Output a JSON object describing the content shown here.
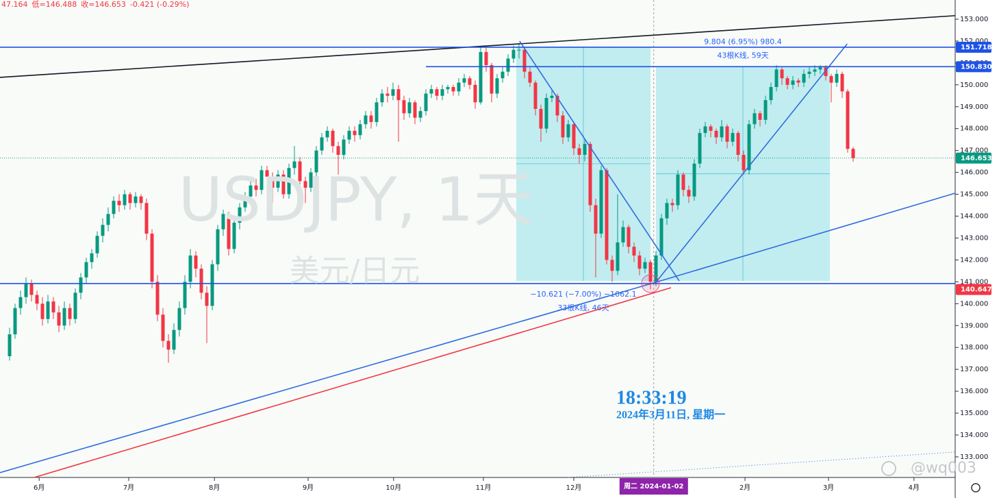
{
  "chart_data": {
    "type": "candlestick",
    "title": "USDJPY, 1天",
    "subtitle": "美元/日元",
    "header": [
      "47.164",
      "低=146.488",
      "收=146.653",
      "-0.421 (-0.29%)"
    ],
    "up_color": "#089981",
    "down_color": "#f23645",
    "xlim": [
      -1.75,
      172.625
    ],
    "xticks": [
      {
        "value": 5.4,
        "label": "6月"
      },
      {
        "value": 21.75,
        "label": "7月"
      },
      {
        "value": 37.4,
        "label": "8月"
      },
      {
        "value": 54.5,
        "label": "9月"
      },
      {
        "value": 70.1,
        "label": "10月"
      },
      {
        "value": 86.5,
        "label": "11月"
      },
      {
        "value": 103,
        "label": "12月"
      },
      {
        "value": 134.25,
        "label": "2月"
      },
      {
        "value": 149.5,
        "label": "3月"
      },
      {
        "value": 165.1,
        "label": "4月"
      }
    ],
    "crosshair": {
      "x": 117.6,
      "label": "周二 2024-01-02"
    },
    "ylim": [
      132.06,
      153.876
    ],
    "yticks": [
      {
        "value": 133,
        "label": "133.000"
      },
      {
        "value": 134,
        "label": "134.000"
      },
      {
        "value": 135,
        "label": "135.000"
      },
      {
        "value": 136,
        "label": "136.000"
      },
      {
        "value": 137,
        "label": "137.000"
      },
      {
        "value": 138,
        "label": "138.000"
      },
      {
        "value": 139,
        "label": "139.000"
      },
      {
        "value": 140,
        "label": "140.000"
      },
      {
        "value": 141,
        "label": "141.000"
      },
      {
        "value": 142,
        "label": "142.000"
      },
      {
        "value": 143,
        "label": "143.000"
      },
      {
        "value": 144,
        "label": "144.000"
      },
      {
        "value": 145,
        "label": "145.000"
      },
      {
        "value": 146,
        "label": "146.000"
      },
      {
        "value": 147,
        "label": "147.000"
      },
      {
        "value": 148,
        "label": "148.000"
      },
      {
        "value": 149,
        "label": "149.000"
      },
      {
        "value": 150,
        "label": "150.000"
      },
      {
        "value": 151,
        "label": "151.000"
      },
      {
        "value": 152,
        "label": "152.000"
      },
      {
        "value": 153,
        "label": "153.000"
      }
    ],
    "ohlc": [
      [
        137.6,
        138.9,
        137.4,
        138.6
      ],
      [
        138.6,
        140.0,
        138.4,
        139.8
      ],
      [
        139.8,
        140.6,
        139.5,
        140.3
      ],
      [
        140.3,
        141.2,
        140.0,
        140.9
      ],
      [
        140.9,
        141.1,
        140.1,
        140.4
      ],
      [
        140.4,
        140.6,
        139.7,
        140.0
      ],
      [
        140.0,
        140.3,
        139.0,
        139.3
      ],
      [
        139.3,
        140.4,
        139.1,
        140.1
      ],
      [
        140.1,
        140.3,
        139.3,
        139.6
      ],
      [
        139.6,
        139.9,
        138.7,
        139.0
      ],
      [
        139.0,
        140.1,
        138.8,
        139.8
      ],
      [
        139.8,
        140.0,
        139.0,
        139.3
      ],
      [
        139.3,
        140.7,
        139.1,
        140.5
      ],
      [
        140.5,
        141.4,
        140.2,
        141.2
      ],
      [
        141.2,
        142.1,
        140.9,
        141.9
      ],
      [
        141.9,
        142.5,
        141.6,
        142.3
      ],
      [
        142.3,
        143.3,
        142.1,
        143.1
      ],
      [
        143.1,
        143.9,
        142.8,
        143.6
      ],
      [
        143.6,
        144.4,
        143.3,
        144.1
      ],
      [
        144.1,
        144.9,
        143.9,
        144.7
      ],
      [
        144.7,
        145.0,
        144.2,
        144.5
      ],
      [
        144.5,
        145.2,
        144.3,
        145.0
      ],
      [
        145.0,
        145.1,
        144.3,
        144.6
      ],
      [
        144.6,
        145.1,
        144.4,
        144.9
      ],
      [
        144.9,
        145.0,
        144.3,
        144.6
      ],
      [
        144.6,
        144.8,
        142.9,
        143.2
      ],
      [
        143.2,
        143.4,
        140.7,
        141.0
      ],
      [
        141.0,
        141.3,
        139.2,
        139.5
      ],
      [
        139.5,
        139.8,
        138.0,
        138.3
      ],
      [
        138.3,
        138.6,
        137.3,
        137.9
      ],
      [
        137.9,
        139.1,
        137.7,
        138.8
      ],
      [
        138.8,
        140.1,
        138.5,
        139.8
      ],
      [
        139.8,
        141.3,
        139.5,
        141.0
      ],
      [
        141.0,
        142.5,
        140.7,
        142.2
      ],
      [
        142.2,
        142.4,
        141.2,
        141.6
      ],
      [
        141.6,
        141.8,
        140.2,
        140.5
      ],
      [
        140.5,
        140.8,
        138.2,
        139.9
      ],
      [
        139.9,
        142.0,
        139.7,
        141.8
      ],
      [
        141.8,
        143.6,
        141.5,
        143.4
      ],
      [
        143.4,
        144.3,
        143.1,
        144.1
      ],
      [
        144.1,
        144.2,
        142.2,
        142.5
      ],
      [
        142.5,
        143.9,
        142.3,
        143.7
      ],
      [
        143.7,
        144.6,
        143.4,
        144.4
      ],
      [
        144.4,
        145.1,
        144.2,
        144.9
      ],
      [
        144.9,
        145.6,
        144.6,
        145.4
      ],
      [
        145.4,
        145.7,
        144.9,
        145.2
      ],
      [
        145.2,
        146.3,
        145.0,
        146.1
      ],
      [
        146.1,
        146.3,
        145.5,
        145.8
      ],
      [
        145.8,
        146.0,
        144.6,
        145.3
      ],
      [
        145.3,
        146.1,
        145.1,
        145.9
      ],
      [
        145.9,
        146.1,
        144.8,
        145.0
      ],
      [
        145.0,
        146.4,
        144.8,
        146.2
      ],
      [
        146.2,
        147.2,
        145.9,
        146.5
      ],
      [
        146.5,
        146.7,
        145.3,
        145.6
      ],
      [
        145.6,
        145.8,
        144.6,
        145.3
      ],
      [
        145.3,
        146.2,
        145.1,
        146.0
      ],
      [
        146.0,
        147.2,
        145.8,
        147.0
      ],
      [
        147.0,
        147.8,
        146.8,
        147.6
      ],
      [
        147.6,
        148.1,
        147.4,
        147.9
      ],
      [
        147.9,
        148.0,
        146.9,
        147.2
      ],
      [
        147.2,
        147.4,
        145.9,
        146.8
      ],
      [
        146.8,
        147.7,
        146.6,
        147.5
      ],
      [
        147.5,
        148.1,
        147.3,
        147.9
      ],
      [
        147.9,
        148.1,
        147.4,
        147.7
      ],
      [
        147.7,
        148.4,
        147.5,
        148.2
      ],
      [
        148.2,
        148.8,
        148.0,
        148.6
      ],
      [
        148.6,
        148.8,
        148.0,
        148.3
      ],
      [
        148.3,
        149.4,
        148.1,
        149.2
      ],
      [
        149.2,
        149.8,
        149.0,
        149.6
      ],
      [
        149.6,
        149.9,
        149.2,
        149.5
      ],
      [
        149.5,
        150.1,
        149.3,
        149.8
      ],
      [
        149.8,
        150.0,
        147.4,
        149.3
      ],
      [
        149.3,
        149.5,
        148.4,
        148.7
      ],
      [
        148.7,
        149.4,
        148.5,
        149.2
      ],
      [
        149.2,
        149.3,
        148.2,
        148.5
      ],
      [
        148.5,
        149.0,
        148.3,
        148.8
      ],
      [
        148.8,
        149.8,
        148.6,
        149.6
      ],
      [
        149.6,
        150.0,
        149.4,
        149.8
      ],
      [
        149.8,
        149.9,
        149.3,
        149.5
      ],
      [
        149.5,
        150.0,
        149.3,
        149.8
      ],
      [
        149.8,
        150.0,
        149.6,
        149.9
      ],
      [
        149.9,
        150.0,
        149.5,
        149.7
      ],
      [
        149.7,
        150.3,
        149.5,
        150.1
      ],
      [
        150.1,
        150.5,
        149.9,
        150.3
      ],
      [
        150.3,
        150.4,
        149.8,
        150.0
      ],
      [
        150.0,
        150.2,
        148.9,
        149.2
      ],
      [
        149.2,
        151.7,
        149.1,
        151.5
      ],
      [
        151.5,
        151.7,
        150.6,
        150.9
      ],
      [
        150.9,
        151.0,
        149.2,
        149.6
      ],
      [
        149.6,
        150.5,
        149.4,
        150.3
      ],
      [
        150.3,
        150.8,
        150.1,
        150.6
      ],
      [
        150.6,
        151.4,
        150.4,
        151.2
      ],
      [
        151.2,
        151.8,
        151.0,
        151.6
      ],
      [
        151.6,
        151.9,
        151.2,
        151.6
      ],
      [
        151.6,
        151.7,
        150.3,
        150.6
      ],
      [
        150.6,
        150.8,
        149.9,
        150.1
      ],
      [
        150.1,
        150.2,
        148.6,
        148.9
      ],
      [
        148.9,
        149.1,
        147.4,
        148.0
      ],
      [
        148.0,
        149.6,
        147.8,
        149.4
      ],
      [
        149.4,
        149.8,
        149.2,
        149.5
      ],
      [
        149.5,
        149.6,
        148.3,
        148.6
      ],
      [
        148.6,
        148.8,
        147.3,
        147.6
      ],
      [
        147.6,
        148.4,
        147.4,
        148.2
      ],
      [
        148.2,
        148.3,
        146.8,
        147.1
      ],
      [
        147.1,
        147.3,
        146.4,
        146.8
      ],
      [
        146.8,
        147.5,
        146.5,
        147.3
      ],
      [
        147.3,
        147.4,
        144.2,
        144.5
      ],
      [
        144.5,
        144.8,
        141.2,
        143.2
      ],
      [
        143.2,
        146.3,
        143.0,
        146.1
      ],
      [
        146.1,
        146.2,
        141.8,
        142.0
      ],
      [
        142.0,
        142.2,
        141.0,
        141.5
      ],
      [
        141.5,
        145.0,
        141.3,
        142.8
      ],
      [
        142.8,
        143.8,
        142.6,
        143.5
      ],
      [
        143.5,
        143.6,
        142.3,
        142.6
      ],
      [
        142.6,
        142.8,
        141.9,
        142.2
      ],
      [
        142.2,
        142.4,
        141.3,
        141.6
      ],
      [
        141.6,
        142.1,
        141.4,
        141.9
      ],
      [
        141.9,
        142.0,
        140.65,
        141.0
      ],
      [
        141.0,
        142.4,
        140.8,
        142.2
      ],
      [
        142.2,
        144.1,
        142.0,
        143.9
      ],
      [
        143.9,
        144.8,
        143.6,
        144.6
      ],
      [
        144.6,
        144.8,
        144.2,
        144.5
      ],
      [
        144.5,
        146.1,
        144.3,
        145.9
      ],
      [
        145.9,
        146.0,
        144.9,
        145.2
      ],
      [
        145.2,
        145.4,
        144.6,
        144.9
      ],
      [
        144.9,
        146.6,
        144.7,
        146.4
      ],
      [
        146.4,
        148.0,
        146.2,
        147.8
      ],
      [
        147.8,
        148.3,
        147.6,
        148.1
      ],
      [
        148.1,
        148.2,
        147.6,
        147.9
      ],
      [
        147.9,
        148.0,
        147.3,
        147.6
      ],
      [
        147.6,
        148.4,
        147.4,
        148.1
      ],
      [
        148.1,
        148.2,
        147.1,
        147.4
      ],
      [
        147.4,
        148.0,
        147.2,
        147.8
      ],
      [
        147.8,
        147.9,
        146.5,
        146.8
      ],
      [
        146.8,
        147.0,
        145.9,
        146.1
      ],
      [
        146.1,
        148.4,
        145.9,
        148.2
      ],
      [
        148.2,
        148.9,
        148.0,
        148.7
      ],
      [
        148.7,
        148.8,
        148.1,
        148.4
      ],
      [
        148.4,
        149.5,
        148.2,
        149.3
      ],
      [
        149.3,
        150.1,
        149.1,
        149.9
      ],
      [
        149.9,
        150.9,
        149.7,
        150.7
      ],
      [
        150.7,
        150.8,
        150.0,
        150.3
      ],
      [
        150.3,
        150.4,
        149.8,
        150.0
      ],
      [
        150.0,
        150.4,
        149.8,
        150.2
      ],
      [
        150.2,
        150.3,
        149.9,
        150.1
      ],
      [
        150.1,
        150.7,
        149.9,
        150.5
      ],
      [
        150.5,
        150.8,
        150.3,
        150.6
      ],
      [
        150.6,
        150.9,
        150.4,
        150.7
      ],
      [
        150.7,
        150.9,
        150.5,
        150.8
      ],
      [
        150.8,
        150.9,
        150.2,
        150.4
      ],
      [
        150.4,
        150.5,
        149.2,
        150.1
      ],
      [
        150.1,
        150.7,
        149.9,
        150.5
      ],
      [
        150.5,
        150.6,
        149.4,
        149.7
      ],
      [
        149.7,
        149.8,
        146.9,
        147.074
      ],
      [
        147.074,
        147.164,
        146.488,
        146.653
      ]
    ],
    "boxes": [
      {
        "x": [
          92.5,
          117
        ],
        "y": [
          141.04,
          151.75
        ],
        "texts": [
          "−10.621 (−7.00%)  −1062.1",
          "33根K线, 46天"
        ],
        "text_side": "below"
      },
      {
        "x": [
          118,
          149.75
        ],
        "y": [
          141.04,
          150.83
        ],
        "texts": [
          "9.804 (6.95%) 980.4",
          "43根K线, 59天"
        ],
        "text_side": "above"
      }
    ],
    "hlines": [
      {
        "value": 151.718,
        "color": "#1e53e5"
      },
      {
        "value": 150.83,
        "label": "150.830",
        "from": 76,
        "color": "#1e53e5"
      },
      {
        "value": 140.92,
        "color": "#1e53e5",
        "axis_label": false
      },
      {
        "value": 146.653,
        "color": "#089981",
        "dotted": true
      },
      {
        "value": 140.647,
        "color": "#f23645",
        "line": false
      }
    ],
    "trendlines": [
      {
        "x": [
          -1.75,
          172.625
        ],
        "y": [
          150.34,
          153.16
        ],
        "color": "#131722"
      },
      {
        "x": [
          93.1,
          122.25
        ],
        "y": [
          152.0,
          141.04
        ],
        "color": "#2f6be0"
      },
      {
        "x": [
          118,
          152.9
        ],
        "y": [
          140.98,
          151.87
        ],
        "color": "#2f6be0"
      },
      {
        "x": [
          -1.75,
          118
        ],
        "y": [
          132.28,
          140.98
        ],
        "color": "#2f6be0"
      },
      {
        "x": [
          4.5,
          120.75
        ],
        "y": [
          132.06,
          140.73
        ],
        "color": "#f23645"
      },
      {
        "x": [
          118,
          172.625
        ],
        "y": [
          140.98,
          145.05
        ],
        "color": "#2f6be0"
      },
      {
        "x": [
          102,
          172.625
        ],
        "y": [
          132.06,
          133.22
        ],
        "color": "#2f6be0",
        "dotted": true
      }
    ],
    "clock": {
      "time": "18:33:19",
      "date": "2024年3月11日, 星期一"
    },
    "watermark": "@wq003"
  }
}
